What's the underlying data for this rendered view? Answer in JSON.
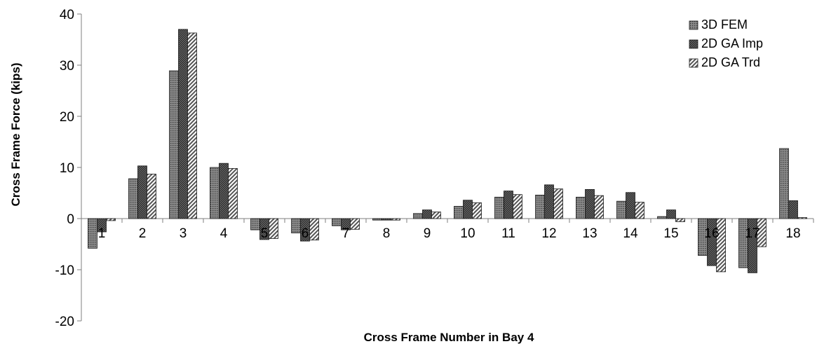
{
  "chart_data": {
    "type": "bar",
    "title": "",
    "xlabel": "Cross Frame Number in Bay 4",
    "ylabel": "Cross Frame Force (kips)",
    "ylim": [
      -20,
      40
    ],
    "yticks": [
      -20,
      -10,
      0,
      10,
      20,
      30,
      40
    ],
    "grid": false,
    "legend_position": "top-right",
    "categories": [
      "1",
      "2",
      "3",
      "4",
      "5",
      "6",
      "7",
      "8",
      "9",
      "10",
      "11",
      "12",
      "13",
      "14",
      "15",
      "16",
      "17",
      "18"
    ],
    "series": [
      {
        "name": "3D FEM",
        "pattern": "dots",
        "color": "#6e6e6e",
        "values": [
          -5.8,
          7.8,
          28.9,
          10.0,
          -2.2,
          -2.8,
          -1.4,
          -0.3,
          1.0,
          2.4,
          4.2,
          4.6,
          4.2,
          3.4,
          0.4,
          -7.2,
          -9.6,
          13.7
        ]
      },
      {
        "name": "2D GA Imp",
        "pattern": "crosshatch",
        "color": "#555555",
        "values": [
          -2.6,
          10.3,
          37.0,
          10.8,
          -4.1,
          -4.4,
          -2.2,
          -0.3,
          1.7,
          3.6,
          5.4,
          6.6,
          5.7,
          5.1,
          1.7,
          -9.2,
          -10.6,
          3.5
        ]
      },
      {
        "name": "2D GA Trd",
        "pattern": "diagonal",
        "color": "#777777",
        "values": [
          -0.4,
          8.7,
          36.3,
          9.8,
          -3.9,
          -4.2,
          -2.1,
          -0.3,
          1.3,
          3.1,
          4.7,
          5.8,
          4.5,
          3.2,
          -0.6,
          -10.4,
          -5.5,
          0.2
        ]
      }
    ]
  }
}
